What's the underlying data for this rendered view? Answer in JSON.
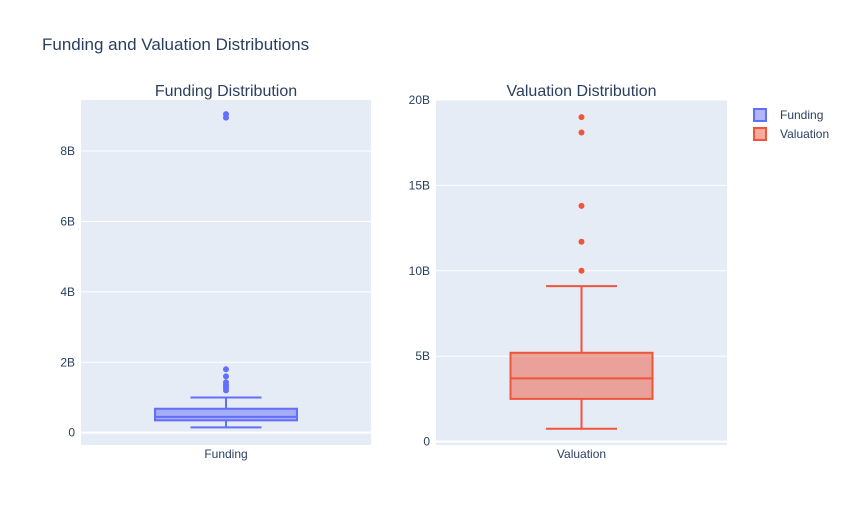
{
  "figure_title": "Funding and Valuation Distributions",
  "chart_data": [
    {
      "type": "box",
      "title": "Funding Distribution",
      "category": "Funding",
      "series_name": "Funding",
      "color": "#636efa",
      "fill": "rgba(99,110,250,0.5)",
      "ylim": [
        -0.35,
        9.45
      ],
      "y_ticks": [
        {
          "value": 0,
          "label": "0"
        },
        {
          "value": 2,
          "label": "2B"
        },
        {
          "value": 4,
          "label": "4B"
        },
        {
          "value": 6,
          "label": "6B"
        },
        {
          "value": 8,
          "label": "8B"
        }
      ],
      "unit": "billions",
      "lower_whisker": 0.15,
      "q1": 0.35,
      "median": 0.45,
      "q3": 0.68,
      "upper_whisker": 1.0,
      "outliers": [
        1.2,
        1.28,
        1.35,
        1.43,
        1.6,
        1.8,
        8.95,
        9.05
      ]
    },
    {
      "type": "box",
      "title": "Valuation Distribution",
      "category": "Valuation",
      "series_name": "Valuation",
      "color": "#ef553b",
      "fill": "rgba(239,85,59,0.5)",
      "ylim": [
        -0.2,
        20
      ],
      "y_ticks": [
        {
          "value": 0,
          "label": "0"
        },
        {
          "value": 5,
          "label": "5B"
        },
        {
          "value": 10,
          "label": "10B"
        },
        {
          "value": 15,
          "label": "15B"
        },
        {
          "value": 20,
          "label": "20B"
        }
      ],
      "unit": "billions",
      "lower_whisker": 0.75,
      "q1": 2.5,
      "median": 3.7,
      "q3": 5.2,
      "upper_whisker": 9.1,
      "outliers": [
        10.0,
        11.7,
        13.8,
        18.1,
        19.0
      ]
    }
  ],
  "legend": [
    {
      "label": "Funding",
      "color": "#636efa",
      "fill": "rgba(99,110,250,0.5)"
    },
    {
      "label": "Valuation",
      "color": "#ef553b",
      "fill": "rgba(239,85,59,0.5)"
    }
  ]
}
